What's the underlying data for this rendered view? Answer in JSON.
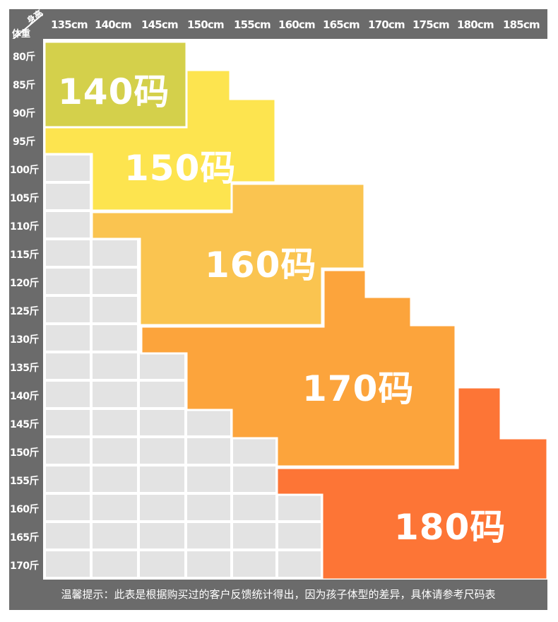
{
  "header": {
    "corner_height_label": "身高",
    "corner_weight_label": "体重",
    "heights": [
      "135cm",
      "140cm",
      "145cm",
      "150cm",
      "155cm",
      "160cm",
      "165cm",
      "170cm",
      "175cm",
      "180cm",
      "185cm"
    ]
  },
  "weights": [
    "80斤",
    "85斤",
    "90斤",
    "95斤",
    "100斤",
    "105斤",
    "110斤",
    "115斤",
    "120斤",
    "125斤",
    "130斤",
    "135斤",
    "140斤",
    "145斤",
    "150斤",
    "155斤",
    "160斤",
    "165斤",
    "170斤"
  ],
  "sizes": [
    "140码",
    "150码",
    "160码",
    "170码",
    "180码"
  ],
  "colors": {
    "header_gray": "#6b6b6b",
    "cell_gray": "#e3e3e3",
    "size_140": "#d4d04b",
    "size_150": "#fde44f",
    "size_160": "#fac450",
    "size_170": "#fca43c",
    "size_180": "#fd7536"
  },
  "footer_note": "温馨提示：此表是根据购买过的客户反馈统计得出，因为孩子体型的差异，具体请参考尺码表"
}
